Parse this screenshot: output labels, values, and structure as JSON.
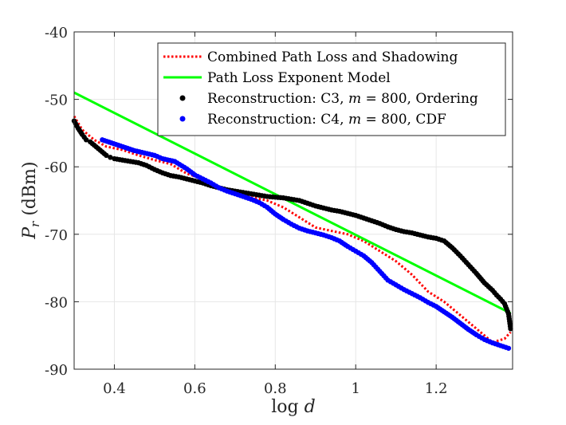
{
  "chart_data": {
    "type": "line",
    "title": "",
    "xlabel": "log d",
    "ylabel": "P_r (dBm)",
    "ylabel_main": "P",
    "ylabel_sub": "r",
    "ylabel_unit": " (dBm)",
    "xlim": [
      0.3,
      1.39
    ],
    "ylim": [
      -90,
      -40
    ],
    "xticks": [
      0.4,
      0.6,
      0.8,
      1.0,
      1.2
    ],
    "xtick_labels": [
      "0.4",
      "0.6",
      "0.8",
      "1",
      "1.2"
    ],
    "yticks": [
      -90,
      -80,
      -70,
      -60,
      -50,
      -40
    ],
    "ytick_labels": [
      "-90",
      "-80",
      "-70",
      "-60",
      "-50",
      "-40"
    ],
    "grid": true,
    "legend_position": "top-right",
    "series": [
      {
        "name": "Combined Path Loss and Shadowing",
        "style": "dotted",
        "color": "#ff0000",
        "x": [
          0.3,
          0.32,
          0.35,
          0.38,
          0.42,
          0.46,
          0.5,
          0.54,
          0.58,
          0.62,
          0.66,
          0.7,
          0.74,
          0.78,
          0.82,
          0.86,
          0.9,
          0.94,
          0.98,
          1.02,
          1.06,
          1.1,
          1.14,
          1.18,
          1.22,
          1.26,
          1.3,
          1.34,
          1.37,
          1.385
        ],
        "y": [
          -52.5,
          -54.5,
          -56.0,
          -57.0,
          -57.5,
          -58.3,
          -59.0,
          -59.6,
          -61.0,
          -61.8,
          -63.0,
          -63.8,
          -64.5,
          -65.0,
          -66.0,
          -67.5,
          -69.0,
          -69.5,
          -70.0,
          -71.0,
          -72.5,
          -74.0,
          -76.0,
          -78.5,
          -80.0,
          -82.0,
          -84.0,
          -86.0,
          -85.5,
          -84.5
        ]
      },
      {
        "name": "Path Loss Exponent Model",
        "style": "solid",
        "color": "#00ff00",
        "x": [
          0.3,
          1.385
        ],
        "y": [
          -49.0,
          -81.7
        ]
      },
      {
        "name": "Reconstruction: C3, m = 800, Ordering",
        "style": "markers",
        "color": "#000000",
        "x": [
          0.3,
          0.31,
          0.32,
          0.33,
          0.34,
          0.35,
          0.36,
          0.37,
          0.38,
          0.39,
          0.4,
          0.42,
          0.44,
          0.46,
          0.48,
          0.5,
          0.52,
          0.54,
          0.56,
          0.58,
          0.6,
          0.62,
          0.64,
          0.66,
          0.68,
          0.7,
          0.72,
          0.74,
          0.76,
          0.78,
          0.8,
          0.82,
          0.84,
          0.86,
          0.88,
          0.9,
          0.92,
          0.94,
          0.96,
          0.98,
          1.0,
          1.02,
          1.04,
          1.06,
          1.08,
          1.1,
          1.12,
          1.14,
          1.16,
          1.18,
          1.2,
          1.22,
          1.24,
          1.26,
          1.28,
          1.3,
          1.32,
          1.34,
          1.35,
          1.36,
          1.37,
          1.38,
          1.385
        ],
        "y": [
          -53.2,
          -54.3,
          -55.2,
          -56.0,
          -56.3,
          -56.8,
          -57.3,
          -57.8,
          -58.3,
          -58.6,
          -58.8,
          -59.0,
          -59.2,
          -59.4,
          -59.8,
          -60.4,
          -60.9,
          -61.3,
          -61.5,
          -61.8,
          -62.1,
          -62.4,
          -62.8,
          -63.1,
          -63.4,
          -63.6,
          -63.8,
          -64.0,
          -64.2,
          -64.4,
          -64.5,
          -64.6,
          -64.8,
          -65.0,
          -65.4,
          -65.8,
          -66.1,
          -66.4,
          -66.6,
          -66.9,
          -67.2,
          -67.6,
          -68.0,
          -68.4,
          -68.9,
          -69.3,
          -69.6,
          -69.8,
          -70.1,
          -70.4,
          -70.6,
          -71.0,
          -72.0,
          -73.2,
          -74.5,
          -75.8,
          -77.2,
          -78.3,
          -79.0,
          -79.6,
          -80.3,
          -81.8,
          -84.0
        ]
      },
      {
        "name": "Reconstruction: C4, m = 800, CDF",
        "style": "markers",
        "color": "#0000ff",
        "x": [
          0.37,
          0.45,
          0.5,
          0.52,
          0.55,
          0.58,
          0.6,
          0.62,
          0.64,
          0.66,
          0.68,
          0.7,
          0.72,
          0.74,
          0.76,
          0.78,
          0.8,
          0.82,
          0.84,
          0.86,
          0.88,
          0.9,
          0.92,
          0.94,
          0.96,
          0.98,
          1.0,
          1.02,
          1.04,
          1.06,
          1.08,
          1.1,
          1.12,
          1.14,
          1.16,
          1.18,
          1.2,
          1.22,
          1.24,
          1.26,
          1.28,
          1.3,
          1.32,
          1.34,
          1.36,
          1.38
        ],
        "y": [
          -56.0,
          -57.6,
          -58.3,
          -58.8,
          -59.2,
          -60.3,
          -61.2,
          -61.8,
          -62.4,
          -63.1,
          -63.6,
          -64.0,
          -64.4,
          -64.8,
          -65.3,
          -66.0,
          -67.0,
          -67.8,
          -68.5,
          -69.1,
          -69.5,
          -69.8,
          -70.1,
          -70.5,
          -71.0,
          -71.8,
          -72.5,
          -73.2,
          -74.2,
          -75.5,
          -76.8,
          -77.5,
          -78.2,
          -78.8,
          -79.4,
          -80.1,
          -80.7,
          -81.5,
          -82.3,
          -83.2,
          -84.1,
          -84.9,
          -85.6,
          -86.1,
          -86.5,
          -86.9
        ]
      }
    ],
    "legend_labels": [
      {
        "parts": [
          {
            "t": "Combined Path Loss and Shadowing",
            "i": false
          }
        ]
      },
      {
        "parts": [
          {
            "t": "Path Loss Exponent Model",
            "i": false
          }
        ]
      },
      {
        "parts": [
          {
            "t": "Reconstruction: C3, ",
            "i": false
          },
          {
            "t": "m",
            "i": true
          },
          {
            "t": " = 800, Ordering",
            "i": false
          }
        ]
      },
      {
        "parts": [
          {
            "t": "Reconstruction: C4, ",
            "i": false
          },
          {
            "t": "m",
            "i": true
          },
          {
            "t": " = 800, CDF",
            "i": false
          }
        ]
      }
    ],
    "xlabel_parts": [
      {
        "t": "log ",
        "i": false
      },
      {
        "t": "d",
        "i": true
      }
    ]
  }
}
